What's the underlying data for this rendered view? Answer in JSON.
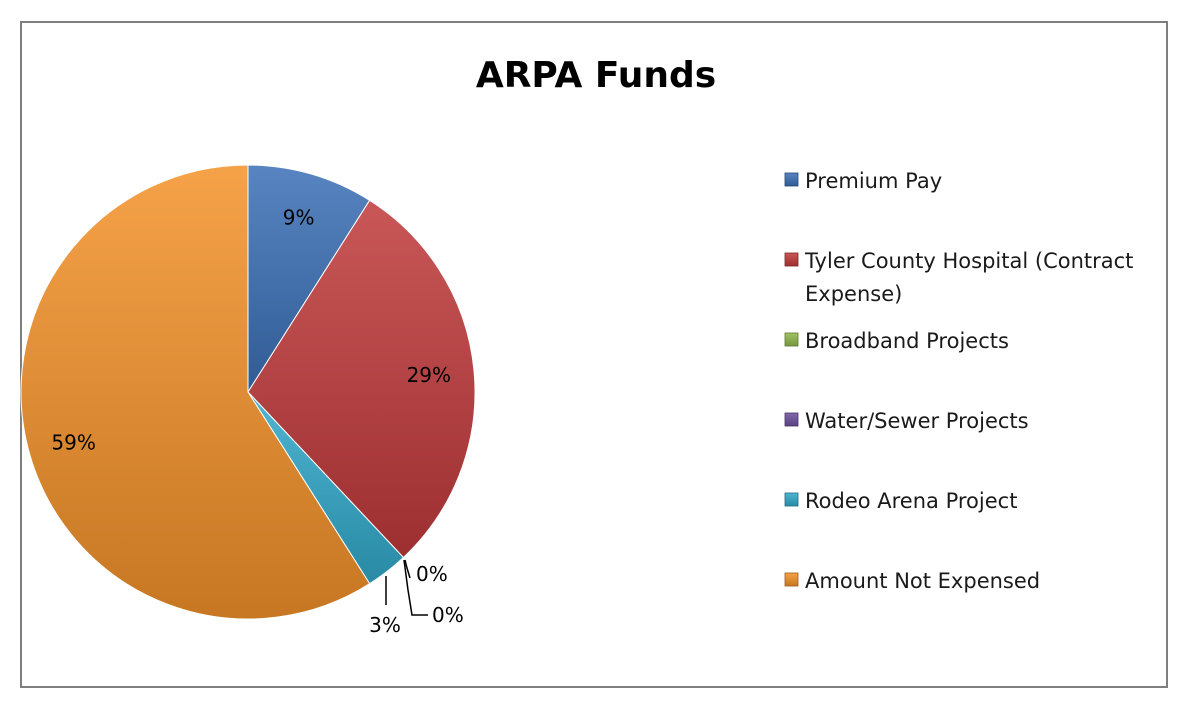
{
  "chart_data": {
    "type": "pie",
    "title": "ARPA Funds",
    "categories": [
      "Premium Pay",
      "Tyler County Hospital (Contract Expense)",
      "Broadband Projects",
      "Water/Sewer Projects",
      "Rodeo Arena Project",
      "Amount Not Expensed"
    ],
    "values": [
      9,
      29,
      0,
      0,
      3,
      59
    ],
    "value_labels": [
      "9%",
      "29%",
      "0%",
      "0%",
      "3%",
      "59%"
    ],
    "colors": [
      "#3b6fb6",
      "#c0393a",
      "#8fb84a",
      "#6d4f9c",
      "#31a8c9",
      "#f39129"
    ],
    "legend_position": "right",
    "grid": false
  }
}
